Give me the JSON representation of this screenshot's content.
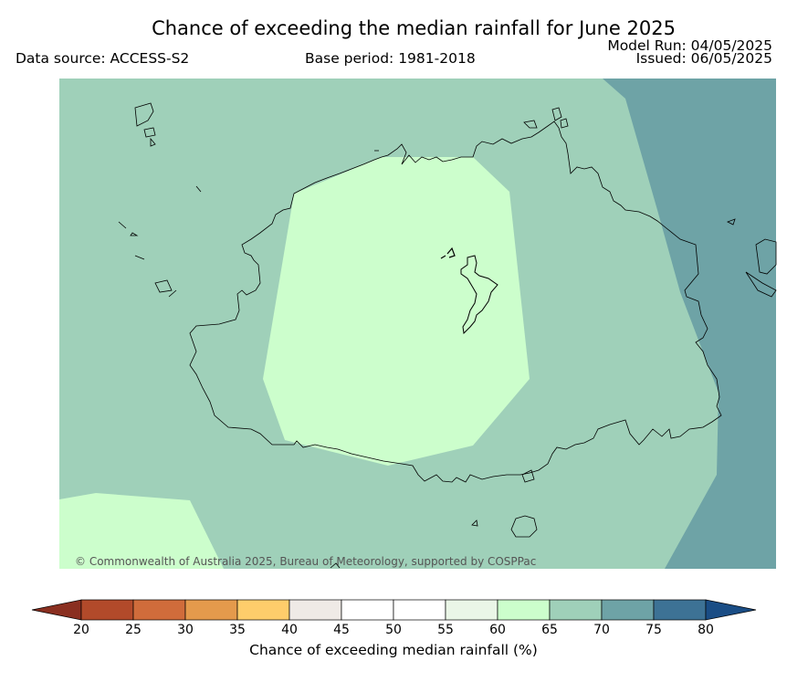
{
  "title": "Chance of exceeding the median rainfall for June 2025",
  "data_source": "Data source: ACCESS-S2",
  "base_period": "Base period: 1981-2018",
  "model_run": "Model Run: 04/05/2025",
  "issued": "Issued: 06/05/2025",
  "copyright": "© Commonwealth of Australia 2025, Bureau of Meteorology, supported by COSPPac",
  "colorbar": {
    "label": "Chance of exceeding median rainfall (%)",
    "ticks": [
      "20",
      "25",
      "30",
      "35",
      "40",
      "45",
      "50",
      "55",
      "60",
      "65",
      "70",
      "75",
      "80"
    ],
    "colors": [
      "#b24a2a",
      "#d06c3b",
      "#e49a4c",
      "#fecd6b",
      "#efeae6",
      "#ffffff",
      "#ffffff",
      "#eaf6e7",
      "#ccfecc",
      "#9fd0b9",
      "#6ea3a6",
      "#3d7295"
    ],
    "under_color": "#8a2f20",
    "over_color": "#1a4d85"
  },
  "map_regions": {
    "category_60_65_color": "#ccfecc",
    "category_65_70_color": "#9fd0b9",
    "category_70_75_color": "#6ea3a6"
  }
}
